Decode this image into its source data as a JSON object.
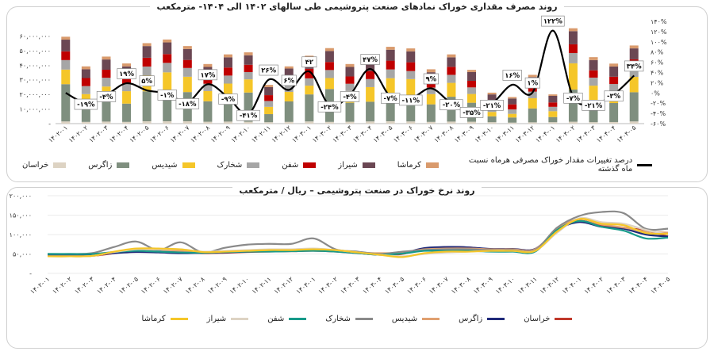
{
  "chart_data": [
    {
      "type": "bar",
      "title": "روند مصرف مقداری خوراک نمادهای صنعت پتروشیمی طی سالهای ۱۴۰۲ الی ۱۴۰۴- مترمکعب",
      "categories": [
        "۱۴۰۲-۰۱",
        "۱۴۰۲-۰۲",
        "۱۴۰۲-۰۳",
        "۱۴۰۲-۰۴",
        "۱۴۰۲-۰۵",
        "۱۴۰۲-۰۶",
        "۱۴۰۲-۰۷",
        "۱۴۰۲-۰۸",
        "۱۴۰۲-۰۹",
        "۱۴۰۲-۱۰",
        "۱۴۰۲-۱۱",
        "۱۴۰۲-۱۲",
        "۱۴۰۳-۰۱",
        "۱۴۰۳-۰۲",
        "۱۴۰۳-۰۳",
        "۱۴۰۳-۰۴",
        "۱۴۰۳-۰۵",
        "۱۴۰۳-۰۶",
        "۱۴۰۳-۰۷",
        "۱۴۰۳-۰۸",
        "۱۴۰۳-۰۹",
        "۱۴۰۳-۱۰",
        "۱۴۰۳-۱۱",
        "۱۴۰۳-۱۲",
        "۱۴۰۴-۰۱",
        "۱۴۰۴-۰۲",
        "۱۴۰۴-۰۳",
        "۱۴۰۴-۰۴",
        "۱۴۰۴-۰۵"
      ],
      "ylim": [
        0,
        70000000
      ],
      "y_ticks": [
        0,
        10000000,
        20000000,
        30000000,
        40000000,
        50000000,
        60000000
      ],
      "y_tick_labels": [
        "-",
        "۱۰,۰۰۰,۰۰۰",
        "۲۰,۰۰۰,۰۰۰",
        "۳۰,۰۰۰,۰۰۰",
        "۴۰,۰۰۰,۰۰۰",
        "۵۰,۰۰۰,۰۰۰",
        "۶۰,۰۰۰,۰۰۰"
      ],
      "y2lim": [
        -60,
        140
      ],
      "y2_ticks": [
        -60,
        -40,
        -20,
        0,
        20,
        40,
        60,
        80,
        100,
        120,
        140
      ],
      "y2_tick_labels": [
        "-۶۰%",
        "-۴۰%",
        "-۲۰%",
        "۰%",
        "۲۰%",
        "۴۰%",
        "۶۰%",
        "۸۰%",
        "۱۰۰%",
        "۱۲۰%",
        "۱۴۰%"
      ],
      "series": [
        {
          "name": "خراسان",
          "color": "#ddd3c3",
          "values": [
            1500000,
            1200000,
            1400000,
            1200000,
            1600000,
            1600000,
            1600000,
            1300000,
            1400000,
            1300000,
            1000000,
            1200000,
            1500000,
            1200000,
            1300000,
            1500000,
            1600000,
            1500000,
            1200000,
            1400000,
            1300000,
            1000000,
            700000,
            900000,
            1000000,
            1300000,
            1000000,
            1100000,
            1500000
          ]
        },
        {
          "name": "زاگرس",
          "color": "#7f8f7f",
          "values": [
            25500000,
            13000000,
            14500000,
            12500000,
            20500000,
            20500000,
            20000000,
            14000000,
            19000000,
            20000000,
            5500000,
            14000000,
            18500000,
            22500000,
            13000000,
            13500000,
            18500000,
            17000000,
            12000000,
            17000000,
            13000000,
            4000000,
            3500000,
            9500000,
            3500000,
            22000000,
            15000000,
            13000000,
            20000000
          ]
        },
        {
          "name": "شیدیس",
          "color": "#f5c629",
          "values": [
            10000000,
            6000000,
            9500000,
            8500000,
            11000000,
            13000000,
            10500000,
            7000000,
            7000000,
            9000000,
            5000000,
            6500000,
            6000000,
            7500000,
            8000000,
            10000000,
            11000000,
            12000000,
            7000000,
            9500000,
            6000000,
            3000000,
            2500000,
            7000000,
            4000000,
            18000000,
            10000000,
            8000000,
            10500000
          ]
        },
        {
          "name": "شخارک",
          "color": "#a6a6a6",
          "values": [
            6500000,
            5500000,
            6000000,
            5000000,
            6000000,
            6500000,
            6000000,
            5000000,
            5500000,
            5000000,
            4000000,
            5000000,
            5000000,
            5500000,
            5000000,
            5500000,
            6000000,
            5500000,
            4500000,
            5500000,
            4500000,
            3500000,
            3000000,
            4500000,
            3000000,
            7000000,
            5500000,
            5000000,
            6000000
          ]
        },
        {
          "name": "شفن",
          "color": "#c00000",
          "values": [
            6000000,
            5500000,
            5500000,
            5000000,
            6000000,
            6000000,
            5500000,
            5000000,
            5500000,
            5000000,
            4000000,
            5000000,
            6500000,
            5500000,
            5000000,
            5500000,
            6000000,
            6000000,
            4500000,
            5500000,
            4500000,
            4000000,
            3500000,
            4500000,
            3000000,
            6000000,
            5000000,
            5000000,
            6000000
          ]
        },
        {
          "name": "شیراز",
          "color": "#6b4753",
          "values": [
            8000000,
            6000000,
            7000000,
            7000000,
            8000000,
            8000000,
            7500000,
            6500000,
            7000000,
            6500000,
            5500000,
            6000000,
            7000000,
            7500000,
            6500000,
            7000000,
            7500000,
            7500000,
            6000000,
            6500000,
            6000000,
            4500000,
            4000000,
            5500000,
            4500000,
            9000000,
            7000000,
            7000000,
            7500000
          ]
        },
        {
          "name": "کرماشا",
          "color": "#d99a6c",
          "values": [
            2000000,
            2000000,
            2000000,
            2000000,
            2000000,
            2000000,
            2000000,
            2000000,
            2000000,
            2000000,
            1500000,
            1500000,
            2000000,
            2000000,
            2000000,
            2000000,
            2000000,
            2000000,
            2000000,
            2000000,
            1500000,
            1200000,
            1000000,
            1500000,
            1000000,
            2000000,
            2000000,
            2000000,
            2000000
          ]
        }
      ],
      "line_series": {
        "name": "درصد تغییرات مقدار خوراک مصرفی هرماه نسبت ماه گذشته",
        "color": "#000000",
        "values": [
          0,
          -19,
          -4,
          19,
          5,
          -1,
          -18,
          17,
          -9,
          -41,
          26,
          6,
          42,
          -24,
          -4,
          47,
          -7,
          -11,
          9,
          -20,
          -35,
          -21,
          16,
          1,
          122,
          -7,
          -21,
          -3,
          34
        ]
      },
      "data_labels": [
        "",
        "-۱۹%",
        "-۴%",
        "۱۹%",
        "۵%",
        "-۱%",
        "-۱۸%",
        "۱۷%",
        "-۹%",
        "-۴۱%",
        "۲۶%",
        "۶%",
        "۴۲",
        "-۲۴%",
        "-۴%",
        "۴۷%",
        "-۷%",
        "-۱۱%",
        "۹%",
        "-۲۰%",
        "-۳۵%",
        "-۲۱%",
        "۱۶%",
        "۱%",
        "۱۲۲%",
        "-۷%",
        "-۲۱%",
        "-۳%",
        "۳۴%"
      ],
      "legend": "bottom"
    },
    {
      "type": "line",
      "title": "روند نرخ خوراک در صنعت پتروشیمی – ریال / مترمکعب",
      "categories": [
        "۱۴۰۲-۰۱",
        "۱۴۰۲-۰۲",
        "۱۴۰۲-۰۳",
        "۱۴۰۲-۰۴",
        "۱۴۰۲-۰۵",
        "۱۴۰۲-۰۶",
        "۱۴۰۲-۰۷",
        "۱۴۰۲-۰۸",
        "۱۴۰۲-۰۹",
        "۱۴۰۲-۱۰",
        "۱۴۰۲-۱۱",
        "۱۴۰۲-۱۲",
        "۱۴۰۳-۰۱",
        "۱۴۰۳-۰۲",
        "۱۴۰۳-۰۳",
        "۱۴۰۳-۰۴",
        "۱۴۰۳-۰۵",
        "۱۴۰۳-۰۶",
        "۱۴۰۳-۰۷",
        "۱۴۰۳-۰۸",
        "۱۴۰۳-۰۹",
        "۱۴۰۳-۱۰",
        "۱۴۰۳-۱۱",
        "۱۴۰۳-۱۲",
        "۱۴۰۴-۰۱",
        "۱۴۰۴-۰۲",
        "۱۴۰۴-۰۳",
        "۱۴۰۴-۰۴",
        "۱۴۰۴-۰۵"
      ],
      "ylim": [
        0,
        200000
      ],
      "y_ticks": [
        0,
        50000,
        100000,
        150000,
        200000
      ],
      "y_tick_labels": [
        "-",
        "۵۰,۰۰۰",
        "۱۰۰,۰۰۰",
        "۱۵۰,۰۰۰",
        "۲۰۰,۰۰۰"
      ],
      "series": [
        {
          "name": "خراسان",
          "color": "#c0392b",
          "values": [
            45000,
            45000,
            45000,
            52000,
            60000,
            58000,
            55000,
            52000,
            53000,
            55000,
            56000,
            57000,
            58000,
            56000,
            52000,
            48000,
            50000,
            63000,
            68000,
            67000,
            62000,
            62000,
            62000,
            110000,
            135000,
            122000,
            118000,
            110000,
            95000
          ]
        },
        {
          "name": "زاگرس",
          "color": "#1f2a7a",
          "values": [
            46000,
            46000,
            47000,
            52000,
            55000,
            54000,
            52000,
            53000,
            54000,
            56000,
            57000,
            58000,
            59000,
            57000,
            53000,
            50000,
            52000,
            65000,
            68000,
            67000,
            63000,
            63000,
            63000,
            112000,
            132000,
            120000,
            115000,
            100000,
            95000
          ]
        },
        {
          "name": "شیدیس",
          "color": "#e0a070",
          "values": [
            44000,
            44000,
            45000,
            55000,
            60000,
            60000,
            58000,
            54000,
            55000,
            57000,
            58000,
            59000,
            60000,
            58000,
            54000,
            52000,
            54000,
            62000,
            64000,
            64000,
            62000,
            62000,
            62000,
            115000,
            140000,
            126000,
            118000,
            108000,
            105000
          ]
        },
        {
          "name": "شخارک",
          "color": "#8a8a8a",
          "values": [
            50000,
            50000,
            52000,
            68000,
            82000,
            60000,
            80000,
            54000,
            66000,
            74000,
            76000,
            76000,
            90000,
            62000,
            56000,
            50000,
            56000,
            60000,
            62000,
            62000,
            60000,
            60000,
            60000,
            118000,
            148000,
            158000,
            155000,
            115000,
            115000
          ]
        },
        {
          "name": "شفن",
          "color": "#179a8a",
          "values": [
            50000,
            50000,
            50000,
            55000,
            58000,
            56000,
            54000,
            53000,
            55000,
            56000,
            56000,
            57000,
            58000,
            56000,
            52000,
            48000,
            51000,
            58000,
            58000,
            58000,
            56000,
            56000,
            56000,
            112000,
            135000,
            120000,
            110000,
            90000,
            92000
          ]
        },
        {
          "name": "شیراز",
          "color": "#ddd3c3",
          "values": [
            44000,
            44000,
            45000,
            55000,
            62000,
            62000,
            62000,
            56000,
            58000,
            60000,
            62000,
            62000,
            64000,
            60000,
            54000,
            48000,
            44000,
            50000,
            54000,
            56000,
            58000,
            58000,
            58000,
            105000,
            142000,
            132000,
            128000,
            112000,
            100000
          ]
        },
        {
          "name": "کرماشا",
          "color": "#f5c629",
          "values": [
            44000,
            44000,
            45000,
            56000,
            64000,
            64000,
            62000,
            55000,
            56000,
            58000,
            60000,
            60000,
            62000,
            60000,
            54000,
            48000,
            42000,
            52000,
            56000,
            56000,
            58000,
            58000,
            58000,
            108000,
            140000,
            128000,
            124000,
            104000,
            102000
          ]
        }
      ],
      "legend": "bottom"
    }
  ]
}
